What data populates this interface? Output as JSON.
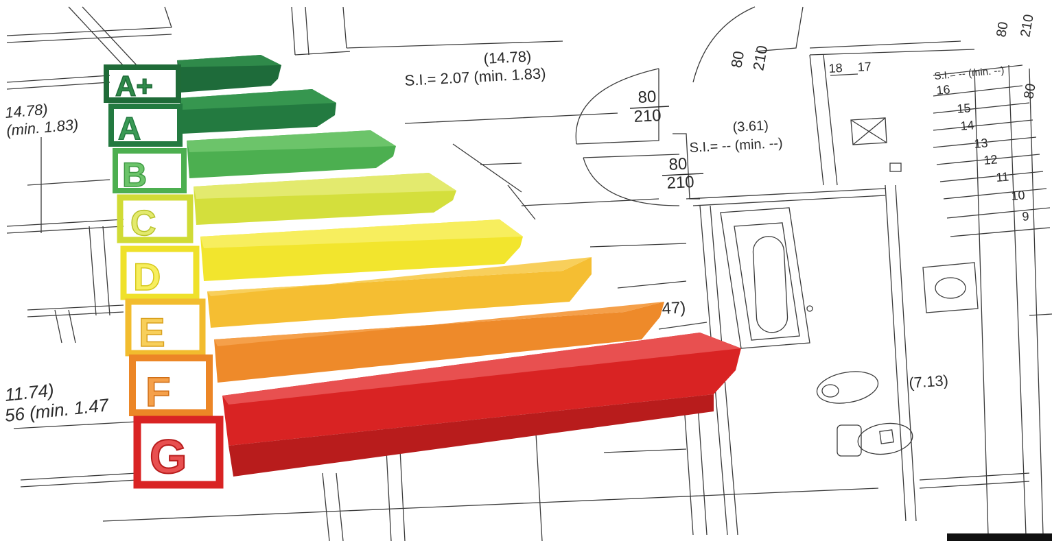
{
  "energy_rating": {
    "classes": [
      {
        "letter": "A+",
        "color": "#2e7d46"
      },
      {
        "letter": "A",
        "color": "#2f8a4a"
      },
      {
        "letter": "B",
        "color": "#5cb85c"
      },
      {
        "letter": "C",
        "color": "#d8e24a"
      },
      {
        "letter": "D",
        "color": "#f3e632"
      },
      {
        "letter": "E",
        "color": "#f6c23a"
      },
      {
        "letter": "F",
        "color": "#f08a2c"
      },
      {
        "letter": "G",
        "color": "#dc2a2a"
      }
    ]
  },
  "blueprint_annotations": {
    "room1_area": "(14.78)",
    "room1_si": "S.I.= 2.07 (min. 1.83)",
    "left_area_1": "14.78)",
    "left_si_1": "(min. 1.83)",
    "door1_top": "80",
    "door1_bottom": "210",
    "door2_top": "80",
    "door2_bottom": "210",
    "door3_top": "80",
    "door3_bottom": "210",
    "door4_top": "80",
    "door4_bottom": "210",
    "room2_area": "(3.61)",
    "room2_si": "S.I.= -- (min. --)",
    "left_area_2": "11.74)",
    "left_si_2": "56 (min. 1.47",
    "partial_47": "47)",
    "bath_area": "(7.13)",
    "stair_si": "S.I.= -- (min. --)",
    "stair_18": "18",
    "stair_17": "17",
    "stairs": [
      "16",
      "15",
      "14",
      "13",
      "12",
      "11",
      "10",
      "9"
    ],
    "right_top_1": "80",
    "right_top_2": "210",
    "right_80": "80"
  }
}
